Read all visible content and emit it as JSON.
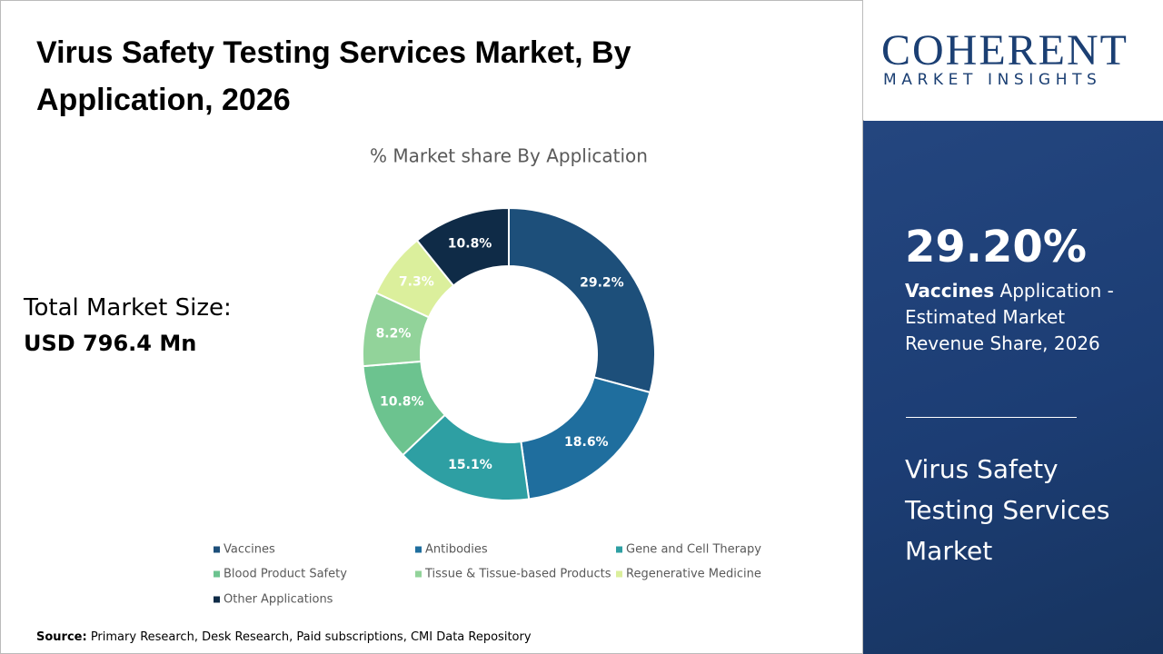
{
  "header": {
    "title": "Virus Safety Testing Services Market, By Application, 2026"
  },
  "total": {
    "label": "Total Market Size:",
    "value": "USD 796.4 Mn"
  },
  "chart_data": {
    "type": "donut",
    "title": "% Market share By Application",
    "categories": [
      "Vaccines",
      "Antibodies",
      "Gene and Cell Therapy",
      "Blood Product Safety",
      "Tissue & Tissue-based Products",
      "Regenerative Medicine",
      "Other Applications"
    ],
    "values": [
      29.2,
      18.6,
      15.1,
      10.8,
      8.2,
      7.3,
      10.8
    ],
    "value_labels": [
      "29.2%",
      "18.6%",
      "15.1%",
      "10.8%",
      "8.2%",
      "7.3%",
      "10.8%"
    ],
    "colors": [
      "#1d4f7a",
      "#1f6e9e",
      "#2e9fa3",
      "#6cc38f",
      "#92d39a",
      "#dbef9c",
      "#0f2b47"
    ]
  },
  "logo": {
    "name": "COHERENT",
    "tagline": "MARKET INSIGHTS"
  },
  "panel": {
    "stat": "29.20%",
    "stat_bold": "Vaccines",
    "stat_text": " Application - Estimated Market Revenue Share, 2026",
    "market": "Virus Safety Testing Services Market"
  },
  "source": {
    "label": "Source:",
    "text": " Primary Research, Desk Research, Paid subscriptions, CMI Data Repository"
  }
}
